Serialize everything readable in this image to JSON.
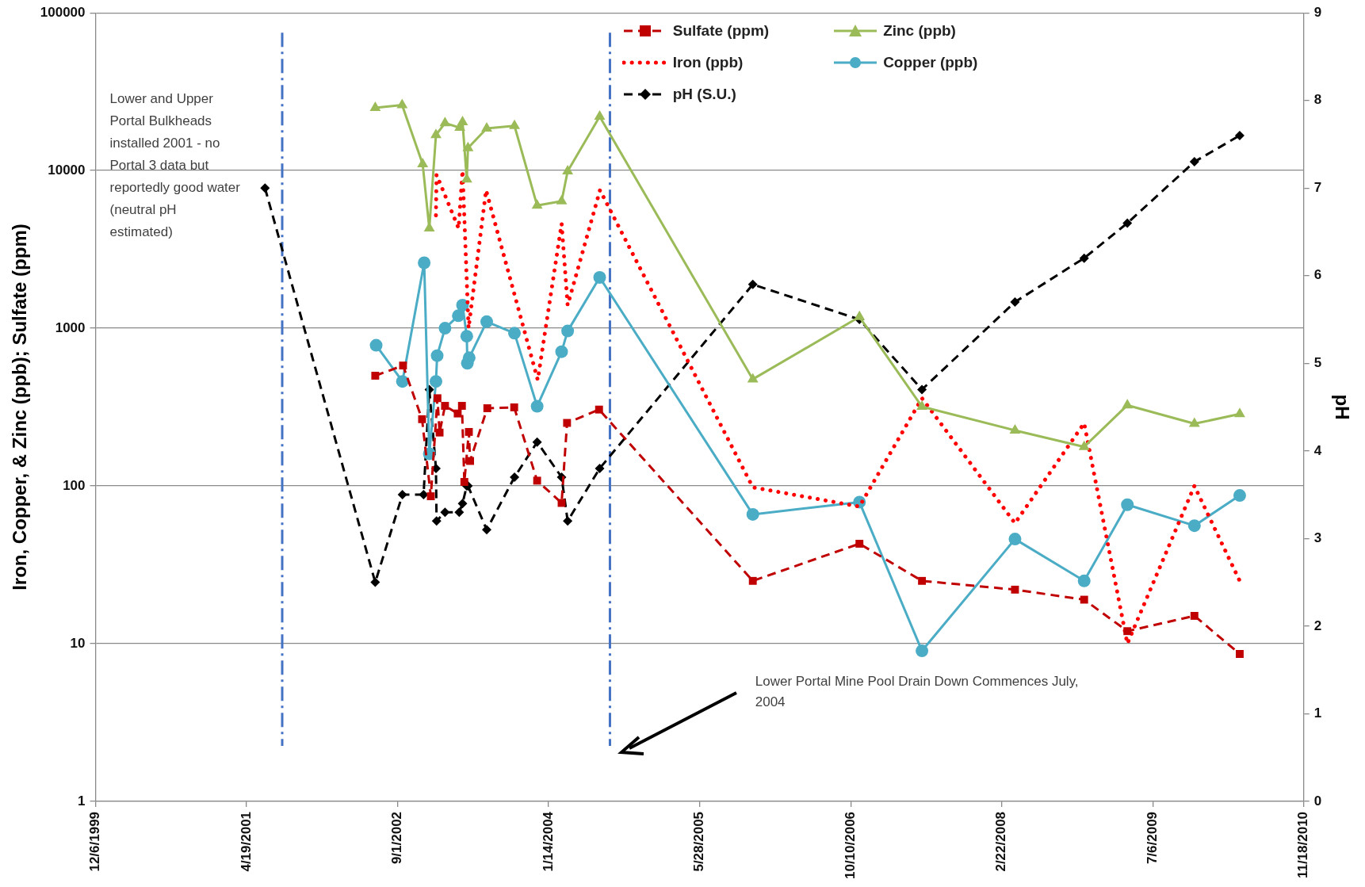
{
  "chart_data": {
    "type": "line",
    "xlabel": null,
    "ylabel": "Iron, Copper, & Zinc (ppb); Sulfate (ppm)",
    "y2label": "pH",
    "log": "y",
    "grid": "y",
    "legend": "top right",
    "xlim": [
      "1999-12-06",
      "2010-11-18"
    ],
    "xticks": [
      {
        "value": "1999-12-06",
        "label": "12/6/1999"
      },
      {
        "value": "2001-04-19",
        "label": "4/19/2001"
      },
      {
        "value": "2002-09-01",
        "label": "9/1/2002"
      },
      {
        "value": "2004-01-14",
        "label": "1/14/2004"
      },
      {
        "value": "2005-05-28",
        "label": "5/28/2005"
      },
      {
        "value": "2006-10-10",
        "label": "10/10/2006"
      },
      {
        "value": "2008-02-22",
        "label": "2/22/2008"
      },
      {
        "value": "2009-07-06",
        "label": "7/6/2009"
      },
      {
        "value": "2010-11-18",
        "label": "11/18/2010"
      }
    ],
    "ylim": [
      1,
      100000
    ],
    "yticks": [
      1,
      10,
      100,
      1000,
      10000,
      100000
    ],
    "y2lim": [
      0,
      9
    ],
    "y2ticks": [
      0,
      1,
      2,
      3,
      4,
      5,
      6,
      7,
      8,
      9
    ],
    "series": [
      {
        "name": "Sulfate (ppm)",
        "color": "#c00000",
        "marker": "square",
        "line_style": "dashed",
        "x": [
          "2002-06-19",
          "2002-09-19",
          "2002-11-21",
          "2002-12-20",
          "2003-01-11",
          "2003-01-18",
          "2003-02-05",
          "2003-03-19",
          "2003-04-02",
          "2003-04-10",
          "2003-04-25",
          "2003-04-29",
          "2003-06-25",
          "2003-09-22",
          "2003-12-07",
          "2004-02-26",
          "2004-03-15",
          "2004-06-29",
          "2005-11-20",
          "2006-11-08",
          "2007-06-03",
          "2008-04-06",
          "2008-11-21",
          "2009-04-13",
          "2009-11-21",
          "2010-04-20"
        ],
        "values": [
          500,
          580,
          265,
          86,
          360,
          218,
          322,
          288,
          322,
          106,
          220,
          144,
          311,
          315,
          108,
          78,
          251,
          305,
          25,
          43,
          25,
          22,
          19,
          12,
          15,
          8.6
        ]
      },
      {
        "name": "Zinc (ppb)",
        "color": "#9bbb59",
        "marker": "triangle",
        "line_style": "solid",
        "x": [
          "2002-06-19",
          "2002-09-16",
          "2002-11-23",
          "2002-12-15",
          "2003-01-06",
          "2003-02-05",
          "2003-03-26",
          "2003-04-04",
          "2003-04-18",
          "2003-04-22",
          "2003-06-23",
          "2003-09-23",
          "2003-12-07",
          "2004-02-26",
          "2004-03-17",
          "2004-07-01",
          "2005-11-20",
          "2006-11-08",
          "2007-06-03",
          "2008-04-06",
          "2008-11-21",
          "2009-04-13",
          "2009-11-21",
          "2010-04-20"
        ],
        "values": [
          25000,
          26000,
          11000,
          4300,
          16800,
          20000,
          18700,
          20300,
          8800,
          13900,
          18500,
          19200,
          6000,
          6400,
          9900,
          22000,
          475,
          1180,
          318,
          225,
          177,
          325,
          248,
          286
        ]
      },
      {
        "name": "Iron (ppb)",
        "color": "#ff0000",
        "marker": "none",
        "line_style": "dotted",
        "x": [
          "2003-01-06",
          "2003-01-08",
          "2003-03-22",
          "2003-04-04",
          "2003-04-24",
          "2003-06-21",
          "2003-12-09",
          "2004-02-26",
          "2004-03-17",
          "2004-07-02",
          "2005-11-20",
          "2006-11-08",
          "2007-06-03",
          "2008-04-06",
          "2008-11-21",
          "2009-04-13",
          "2009-11-21",
          "2010-04-20"
        ],
        "values": [
          5200,
          9400,
          4300,
          10000,
          1000,
          7500,
          470,
          4600,
          1400,
          7500,
          98,
          74,
          360,
          58,
          250,
          10,
          100,
          25
        ]
      },
      {
        "name": "Copper (ppb)",
        "color": "#4bacc6",
        "marker": "circle",
        "line_style": "solid",
        "x": [
          "2002-06-22",
          "2002-09-17",
          "2002-11-28",
          "2002-12-15",
          "2003-01-06",
          "2003-01-10",
          "2003-02-05",
          "2003-03-21",
          "2003-04-04",
          "2003-04-18",
          "2003-04-20",
          "2003-04-26",
          "2003-06-23",
          "2003-09-23",
          "2003-12-07",
          "2004-02-26",
          "2004-03-17",
          "2004-07-01",
          "2005-11-20",
          "2006-11-08",
          "2007-06-03",
          "2008-04-06",
          "2008-11-21",
          "2009-04-13",
          "2009-11-21",
          "2010-04-20"
        ],
        "values": [
          780,
          460,
          2600,
          160,
          460,
          670,
          1000,
          1200,
          1400,
          890,
          600,
          650,
          1100,
          930,
          320,
          710,
          960,
          2100,
          66,
          79,
          9,
          46,
          25,
          76,
          56,
          87
        ]
      },
      {
        "name": "pH (S.U.)",
        "color": "#000000",
        "marker": "diamond",
        "line_style": "dashed",
        "axis": "y2",
        "x": [
          "2001-06-19",
          "2002-06-19",
          "2002-09-17",
          "2002-11-26",
          "2002-12-15",
          "2003-01-06",
          "2003-01-08",
          "2003-02-05",
          "2003-03-24",
          "2003-04-04",
          "2003-04-18",
          "2003-04-22",
          "2003-06-23",
          "2003-09-23",
          "2003-12-07",
          "2004-02-26",
          "2004-03-17",
          "2004-07-01",
          "2005-11-20",
          "2006-11-08",
          "2007-06-03",
          "2008-04-06",
          "2008-11-21",
          "2009-04-13",
          "2009-11-21",
          "2010-04-20"
        ],
        "values": [
          7.0,
          2.5,
          3.5,
          3.5,
          4.7,
          3.8,
          3.2,
          3.3,
          3.3,
          3.4,
          3.6,
          3.6,
          3.1,
          3.7,
          4.1,
          3.7,
          3.2,
          3.8,
          5.9,
          5.5,
          4.7,
          5.7,
          6.2,
          6.6,
          7.3,
          7.6
        ]
      }
    ],
    "ref_lines": [
      {
        "axis": "x",
        "value": "2001-08-15",
        "color": "#4472c4",
        "line_style": "dashed"
      },
      {
        "axis": "x",
        "value": "2004-08-04",
        "color": "#4472c4",
        "line_style": "dashed"
      }
    ],
    "annotations": [
      "Lower and Upper Portal Bulkheads installed 2001 - no Portal 3 data but reportedly good water (neutral pH estimated)",
      "Lower Portal Mine Pool Drain Down Commences July, 2004"
    ]
  }
}
